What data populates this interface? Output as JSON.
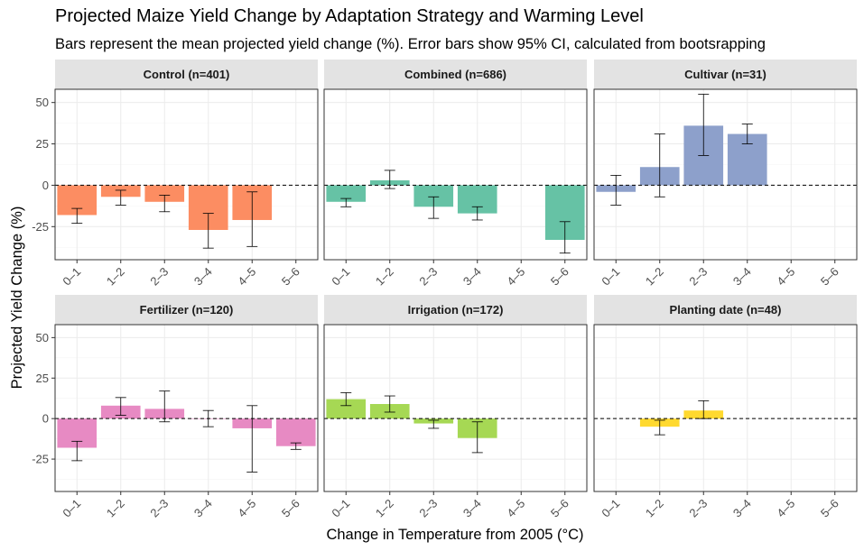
{
  "title": "Projected Maize Yield Change by Adaptation Strategy and Warming Level",
  "subtitle": "Bars represent the mean projected yield change (%). Error bars show 95% CI, calculated from bootsrapping",
  "chart_data": {
    "type": "bar",
    "title": "Projected Maize Yield Change by Adaptation Strategy and Warming Level",
    "subtitle": "Bars represent the mean projected yield change (%). Error bars show 95% CI, calculated from bootsrapping",
    "xlabel": "Change in Temperature from 2005 (°C)",
    "ylabel": "Projected Yield Change (%)",
    "categories": [
      "0–1",
      "1–2",
      "2–3",
      "3–4",
      "4–5",
      "5–6"
    ],
    "ylim": [
      -45,
      58
    ],
    "yticks": [
      -25,
      0,
      25,
      50
    ],
    "grid": true,
    "reference_line": 0,
    "facets": [
      {
        "label": "Control (n=401)",
        "color": "#FC8D62",
        "values": [
          -18,
          -7,
          -10,
          -27,
          -21,
          null
        ],
        "ci_low": [
          -23,
          -12,
          -16,
          -38,
          -37,
          null
        ],
        "ci_high": [
          -14,
          -3,
          -6,
          -17,
          -4,
          null
        ]
      },
      {
        "label": "Combined (n=686)",
        "color": "#66C2A5",
        "values": [
          -10,
          3,
          -13,
          -17,
          null,
          -33
        ],
        "ci_low": [
          -13,
          -2,
          -20,
          -21,
          null,
          -41
        ],
        "ci_high": [
          -8,
          9,
          -7,
          -13,
          null,
          -22
        ]
      },
      {
        "label": "Cultivar (n=31)",
        "color": "#8DA0CB",
        "values": [
          -4,
          11,
          36,
          31,
          null,
          null
        ],
        "ci_low": [
          -12,
          -7,
          18,
          25,
          null,
          null
        ],
        "ci_high": [
          6,
          31,
          55,
          37,
          null,
          null
        ]
      },
      {
        "label": "Fertilizer (n=120)",
        "color": "#E78AC3",
        "values": [
          -18,
          8,
          6,
          0,
          -6,
          -17
        ],
        "ci_low": [
          -26,
          2,
          -2,
          -5,
          -33,
          -19
        ],
        "ci_high": [
          -14,
          13,
          17,
          5,
          8,
          -15
        ]
      },
      {
        "label": "Irrigation (n=172)",
        "color": "#A6D854",
        "values": [
          12,
          9,
          -3,
          -12,
          null,
          null
        ],
        "ci_low": [
          8,
          4,
          -6,
          -21,
          null,
          null
        ],
        "ci_high": [
          16,
          14,
          -1,
          -2,
          null,
          null
        ]
      },
      {
        "label": "Planting date (n=48)",
        "color": "#FFD92F",
        "values": [
          null,
          -5,
          5,
          null,
          null,
          null
        ],
        "ci_low": [
          null,
          -10,
          0,
          null,
          null,
          null
        ],
        "ci_high": [
          null,
          -1,
          11,
          null,
          null,
          null
        ]
      }
    ]
  }
}
